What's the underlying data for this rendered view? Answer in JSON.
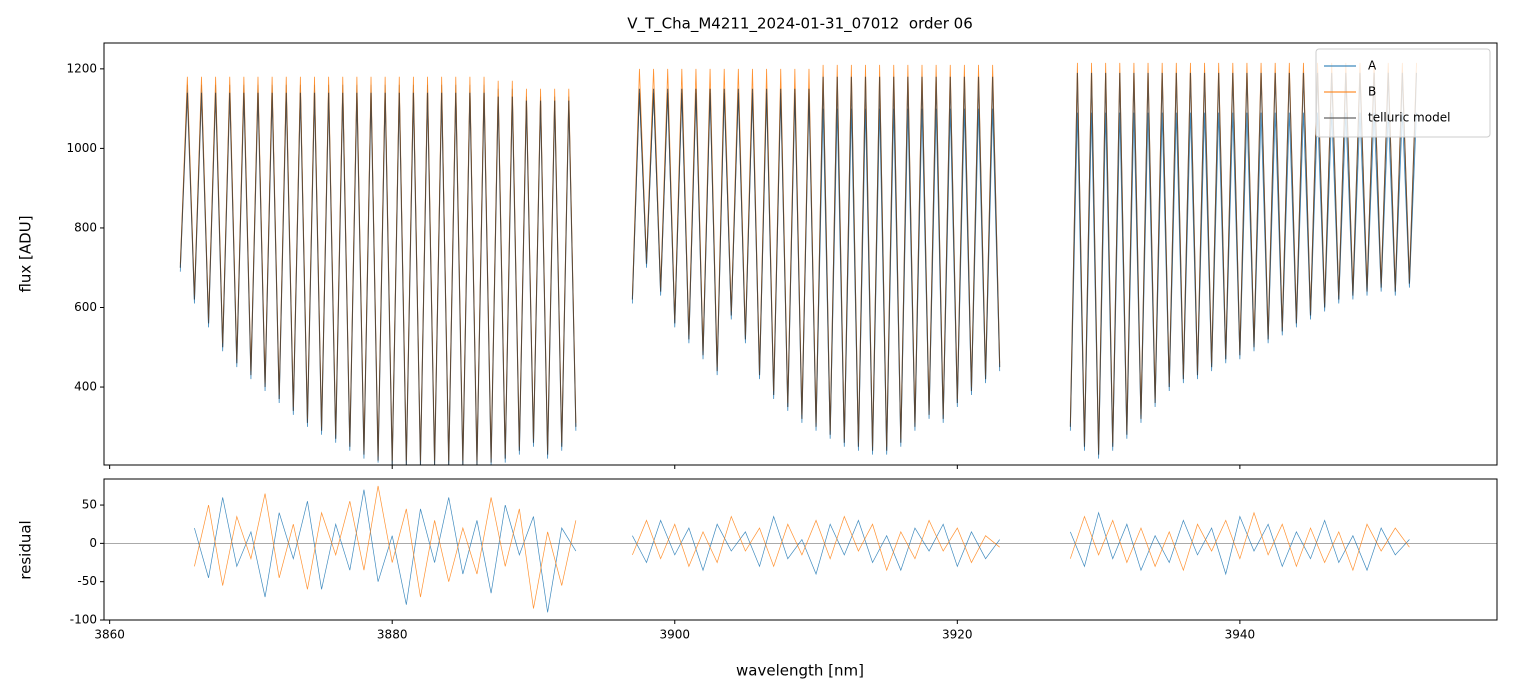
{
  "chart_data": [
    {
      "type": "line",
      "title": "V_T_Cha_M4211_2024-01-31_07012  order 06",
      "ylabel": "flux [ADU]",
      "x": [
        3865,
        3865.5,
        3866,
        3866.5,
        3867,
        3867.5,
        3868,
        3868.5,
        3869,
        3869.5,
        3870,
        3870.5,
        3871,
        3871.5,
        3872,
        3872.5,
        3873,
        3873.5,
        3874,
        3874.5,
        3875,
        3875.5,
        3876,
        3876.5,
        3877,
        3877.5,
        3878,
        3878.5,
        3879,
        3879.5,
        3880,
        3880.5,
        3881,
        3881.5,
        3882,
        3882.5,
        3883,
        3883.5,
        3884,
        3884.5,
        3885,
        3885.5,
        3886,
        3886.5,
        3887,
        3887.5,
        3888,
        3888.5,
        3889,
        3889.5,
        3890,
        3890.5,
        3891,
        3891.5,
        3892,
        3892.5,
        3893,
        3893.5,
        3894,
        3894.5,
        3895,
        3895.5,
        3896,
        3896.5,
        3897,
        3897.5,
        3898,
        3898.5,
        3899,
        3899.5,
        3900,
        3900.5,
        3901,
        3901.5,
        3902,
        3902.5,
        3903,
        3903.5,
        3904,
        3904.5,
        3905,
        3905.5,
        3906,
        3906.5,
        3907,
        3907.5,
        3908,
        3908.5,
        3909,
        3909.5,
        3910,
        3910.5,
        3911,
        3911.5,
        3912,
        3912.5,
        3913,
        3913.5,
        3914,
        3914.5,
        3915,
        3915.5,
        3916,
        3916.5,
        3917,
        3917.5,
        3918,
        3918.5,
        3919,
        3919.5,
        3920,
        3920.5,
        3921,
        3921.5,
        3922,
        3922.5,
        3923,
        3923.5,
        3924,
        3924.5,
        3925,
        3925.5,
        3926,
        3926.5,
        3927,
        3927.5,
        3928,
        3928.5,
        3929,
        3929.5,
        3930,
        3930.5,
        3931,
        3931.5,
        3932,
        3932.5,
        3933,
        3933.5,
        3934,
        3934.5,
        3935,
        3935.5,
        3936,
        3936.5,
        3937,
        3937.5,
        3938,
        3938.5,
        3939,
        3939.5,
        3940,
        3940.5,
        3941,
        3941.5,
        3942,
        3942.5,
        3943,
        3943.5,
        3944,
        3944.5,
        3945,
        3945.5,
        3946,
        3946.5,
        3947,
        3947.5,
        3948,
        3948.5,
        3949,
        3949.5,
        3950,
        3950.5,
        3951,
        3951.5,
        3952,
        3952.5
      ],
      "series": [
        {
          "name": "A",
          "color": "#1f77b4",
          "values": [
            690,
            1160,
            610,
            1160,
            550,
            1160,
            490,
            1160,
            450,
            1160,
            420,
            1160,
            390,
            1160,
            360,
            1160,
            330,
            1160,
            300,
            1160,
            280,
            1160,
            260,
            1160,
            240,
            1160,
            220,
            1160,
            210,
            1160,
            205,
            1160,
            205,
            1160,
            205,
            1160,
            205,
            1160,
            205,
            1160,
            205,
            1160,
            205,
            1160,
            205,
            1150,
            210,
            1150,
            230,
            1130,
            250,
            1130,
            220,
            1130,
            240,
            1130,
            290,
            null,
            null,
            null,
            null,
            null,
            null,
            null,
            610,
            1140,
            700,
            1140,
            630,
            1140,
            550,
            1140,
            510,
            1140,
            470,
            1140,
            430,
            1140,
            570,
            1140,
            510,
            1140,
            420,
            1140,
            370,
            1140,
            340,
            1140,
            310,
            1140,
            290,
            1100,
            270,
            1100,
            250,
            1100,
            240,
            1100,
            230,
            1100,
            230,
            1100,
            250,
            1100,
            290,
            1100,
            320,
            1100,
            310,
            1100,
            350,
            1100,
            380,
            1100,
            410,
            1100,
            440,
            null,
            null,
            null,
            null,
            null,
            null,
            null,
            null,
            null,
            290,
            1090,
            240,
            1090,
            220,
            1090,
            240,
            1090,
            270,
            1090,
            310,
            1090,
            350,
            1090,
            390,
            1090,
            410,
            1090,
            420,
            1090,
            440,
            1090,
            460,
            1090,
            470,
            1090,
            490,
            1090,
            510,
            1090,
            530,
            1090,
            550,
            1090,
            570,
            1090,
            590,
            1090,
            610,
            1090,
            620,
            1090,
            630,
            1090,
            640,
            1090,
            630,
            1090,
            650,
            1090
          ]
        },
        {
          "name": "B",
          "color": "#ff7f0e",
          "values": [
            710,
            1180,
            630,
            1180,
            570,
            1180,
            510,
            1180,
            470,
            1180,
            440,
            1180,
            410,
            1180,
            380,
            1180,
            350,
            1180,
            320,
            1180,
            300,
            1180,
            280,
            1180,
            260,
            1180,
            240,
            1180,
            225,
            1180,
            215,
            1180,
            215,
            1180,
            215,
            1180,
            215,
            1180,
            215,
            1180,
            215,
            1180,
            215,
            1180,
            220,
            1170,
            230,
            1170,
            250,
            1150,
            270,
            1150,
            240,
            1150,
            260,
            1150,
            310,
            null,
            null,
            null,
            null,
            null,
            null,
            null,
            630,
            1200,
            720,
            1200,
            650,
            1200,
            570,
            1200,
            530,
            1200,
            490,
            1200,
            450,
            1200,
            590,
            1200,
            530,
            1200,
            440,
            1200,
            390,
            1200,
            360,
            1200,
            330,
            1200,
            310,
            1210,
            290,
            1210,
            270,
            1210,
            260,
            1210,
            250,
            1210,
            250,
            1210,
            270,
            1210,
            310,
            1210,
            340,
            1210,
            330,
            1210,
            370,
            1210,
            400,
            1210,
            430,
            1210,
            460,
            null,
            null,
            null,
            null,
            null,
            null,
            null,
            null,
            null,
            310,
            1215,
            260,
            1215,
            240,
            1215,
            260,
            1215,
            290,
            1215,
            330,
            1215,
            370,
            1215,
            410,
            1215,
            430,
            1215,
            440,
            1215,
            460,
            1215,
            480,
            1215,
            490,
            1215,
            510,
            1215,
            530,
            1215,
            550,
            1215,
            570,
            1215,
            590,
            1215,
            610,
            1215,
            630,
            1215,
            640,
            1215,
            650,
            1215,
            660,
            1215,
            650,
            1215,
            670,
            1215
          ]
        },
        {
          "name": "telluric model",
          "color": "#333333",
          "values": [
            700,
            1140,
            620,
            1140,
            560,
            1140,
            500,
            1140,
            460,
            1140,
            430,
            1140,
            400,
            1140,
            370,
            1140,
            340,
            1140,
            310,
            1140,
            290,
            1140,
            270,
            1140,
            250,
            1140,
            230,
            1140,
            215,
            1140,
            205,
            1140,
            205,
            1140,
            205,
            1140,
            205,
            1140,
            205,
            1140,
            205,
            1140,
            205,
            1140,
            210,
            1130,
            220,
            1130,
            240,
            1120,
            260,
            1120,
            230,
            1120,
            250,
            1120,
            300,
            null,
            null,
            null,
            null,
            null,
            null,
            null,
            620,
            1150,
            710,
            1150,
            640,
            1150,
            560,
            1150,
            520,
            1150,
            480,
            1150,
            440,
            1150,
            580,
            1150,
            520,
            1150,
            430,
            1150,
            380,
            1150,
            350,
            1150,
            320,
            1150,
            300,
            1180,
            280,
            1180,
            260,
            1180,
            250,
            1180,
            240,
            1180,
            240,
            1180,
            260,
            1180,
            300,
            1180,
            330,
            1180,
            320,
            1180,
            360,
            1180,
            390,
            1180,
            420,
            1180,
            450,
            null,
            null,
            null,
            null,
            null,
            null,
            null,
            null,
            null,
            300,
            1190,
            250,
            1190,
            230,
            1190,
            250,
            1190,
            280,
            1190,
            320,
            1190,
            360,
            1190,
            400,
            1190,
            420,
            1190,
            430,
            1190,
            450,
            1190,
            470,
            1190,
            480,
            1190,
            500,
            1190,
            520,
            1190,
            540,
            1190,
            560,
            1190,
            580,
            1190,
            600,
            1190,
            620,
            1190,
            630,
            1190,
            640,
            1190,
            650,
            1190,
            640,
            1190,
            660,
            1190
          ]
        }
      ],
      "xlim": [
        3859.6,
        3958.2
      ],
      "xticks": [
        3860,
        3880,
        3900,
        3920,
        3940
      ],
      "ylim": [
        204,
        1265
      ],
      "yticks": [
        400,
        600,
        800,
        1000,
        1200
      ],
      "legend": "upper right"
    },
    {
      "type": "line",
      "xlabel": "wavelength [nm]",
      "ylabel": "residual",
      "reference_line": 0,
      "x": [
        3866,
        3867,
        3868,
        3869,
        3870,
        3871,
        3872,
        3873,
        3874,
        3875,
        3876,
        3877,
        3878,
        3879,
        3880,
        3881,
        3882,
        3883,
        3884,
        3885,
        3886,
        3887,
        3888,
        3889,
        3890,
        3891,
        3892,
        3893,
        3894,
        3895,
        3896,
        3897,
        3898,
        3899,
        3900,
        3901,
        3902,
        3903,
        3904,
        3905,
        3906,
        3907,
        3908,
        3909,
        3910,
        3911,
        3912,
        3913,
        3914,
        3915,
        3916,
        3917,
        3918,
        3919,
        3920,
        3921,
        3922,
        3923,
        3924,
        3925,
        3926,
        3927,
        3928,
        3929,
        3930,
        3931,
        3932,
        3933,
        3934,
        3935,
        3936,
        3937,
        3938,
        3939,
        3940,
        3941,
        3942,
        3943,
        3944,
        3945,
        3946,
        3947,
        3948,
        3949,
        3950,
        3951,
        3952
      ],
      "series": [
        {
          "name": "A",
          "color": "#1f77b4",
          "values": [
            20,
            -45,
            60,
            -30,
            15,
            -70,
            40,
            -20,
            55,
            -60,
            25,
            -35,
            70,
            -50,
            10,
            -80,
            45,
            -25,
            60,
            -40,
            30,
            -65,
            50,
            -15,
            35,
            -90,
            20,
            -10,
            null,
            null,
            null,
            10,
            -25,
            30,
            -15,
            20,
            -35,
            25,
            -10,
            15,
            -30,
            35,
            -20,
            5,
            -40,
            25,
            -15,
            30,
            -25,
            10,
            -35,
            20,
            -10,
            25,
            -30,
            15,
            -20,
            5,
            null,
            null,
            null,
            null,
            15,
            -30,
            40,
            -20,
            25,
            -35,
            10,
            -25,
            30,
            -15,
            20,
            -40,
            35,
            -10,
            25,
            -30,
            15,
            -20,
            30,
            -25,
            10,
            -35,
            20,
            -15,
            5
          ]
        },
        {
          "name": "B",
          "color": "#ff7f0e",
          "values": [
            -30,
            50,
            -55,
            35,
            -20,
            65,
            -45,
            25,
            -60,
            40,
            -15,
            55,
            -35,
            75,
            -25,
            45,
            -70,
            30,
            -50,
            20,
            -40,
            60,
            -30,
            45,
            -85,
            15,
            -55,
            30,
            null,
            null,
            null,
            -15,
            30,
            -20,
            25,
            -30,
            15,
            -25,
            35,
            -10,
            20,
            -30,
            25,
            -15,
            30,
            -20,
            35,
            -10,
            25,
            -35,
            15,
            -20,
            30,
            -10,
            20,
            -25,
            10,
            -5,
            null,
            null,
            null,
            null,
            -20,
            35,
            -15,
            30,
            -25,
            20,
            -30,
            15,
            -35,
            25,
            -10,
            30,
            -20,
            40,
            -15,
            25,
            -30,
            20,
            -25,
            15,
            -35,
            25,
            -10,
            20,
            -5
          ]
        }
      ],
      "xlim": [
        3859.6,
        3958.2
      ],
      "xticks": [
        3860,
        3880,
        3900,
        3920,
        3940
      ],
      "ylim": [
        -100,
        84
      ],
      "yticks": [
        -100,
        -50,
        0,
        50
      ]
    }
  ]
}
